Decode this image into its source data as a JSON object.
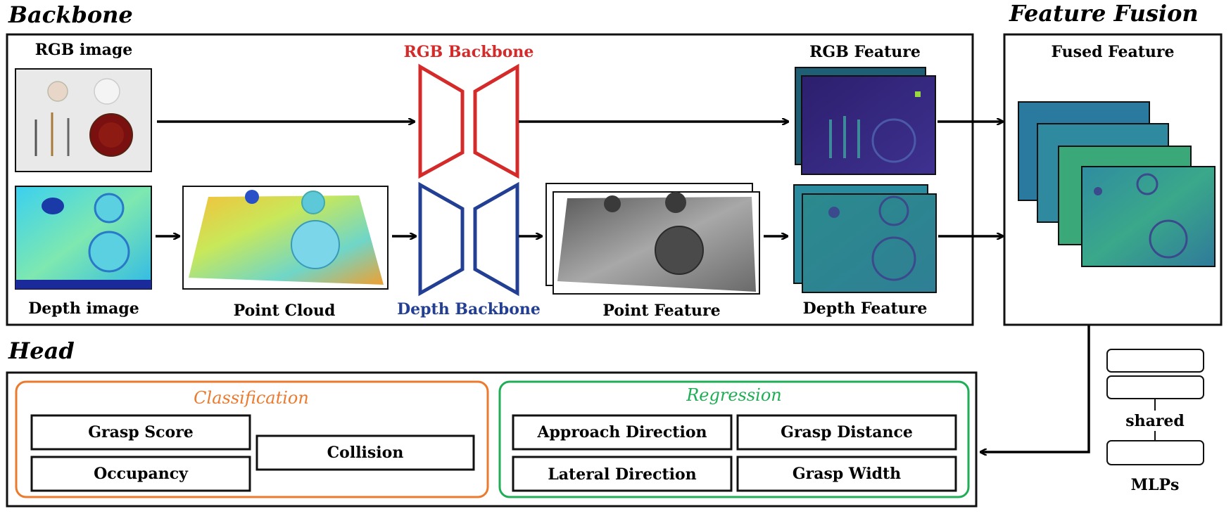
{
  "sections": {
    "backbone": "Backbone",
    "fusion": "Feature Fusion",
    "head": "Head"
  },
  "labels": {
    "rgb_image": "RGB image",
    "depth_image": "Depth image",
    "point_cloud": "Point Cloud",
    "rgb_backbone": "RGB Backbone",
    "depth_backbone": "Depth Backbone",
    "point_feature": "Point Feature",
    "rgb_feature": "RGB Feature",
    "depth_feature": "Depth Feature",
    "fused_feature": "Fused Feature"
  },
  "head": {
    "classification": {
      "title": "Classification",
      "items": {
        "grasp_score": "Grasp Score",
        "occupancy": "Occupancy",
        "collision": "Collision"
      }
    },
    "regression": {
      "title": "Regression",
      "items": {
        "approach_direction": "Approach Direction",
        "grasp_distance": "Grasp Distance",
        "lateral_direction": "Lateral Direction",
        "grasp_width": "Grasp Width"
      }
    }
  },
  "mlp": {
    "shared": "shared",
    "name": "MLPs"
  },
  "colors": {
    "rgb_backbone": "#d42a2a",
    "depth_backbone": "#233f94",
    "classification": "#ec7a2e",
    "regression": "#1fae55",
    "feature_map": "#3b2a7a"
  }
}
